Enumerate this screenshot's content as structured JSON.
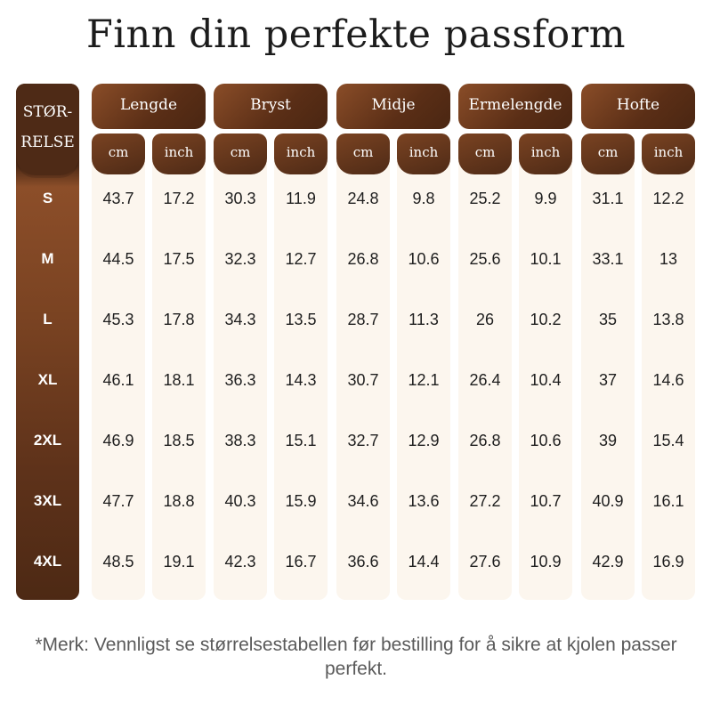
{
  "title": "Finn din perfekte passform",
  "size_header": [
    "STØR-",
    "RELSE"
  ],
  "sizes": [
    "S",
    "M",
    "L",
    "XL",
    "2XL",
    "3XL",
    "4XL"
  ],
  "groups": [
    {
      "name": "Lengde",
      "cm": [
        43.7,
        44.5,
        45.3,
        46.1,
        46.9,
        47.7,
        48.5
      ],
      "inch": [
        17.2,
        17.5,
        17.8,
        18.1,
        18.5,
        18.8,
        19.1
      ]
    },
    {
      "name": "Bryst",
      "cm": [
        30.3,
        32.3,
        34.3,
        36.3,
        38.3,
        40.3,
        42.3
      ],
      "inch": [
        11.9,
        12.7,
        13.5,
        14.3,
        15.1,
        15.9,
        16.7
      ]
    },
    {
      "name": "Midje",
      "cm": [
        24.8,
        26.8,
        28.7,
        30.7,
        32.7,
        34.6,
        36.6
      ],
      "inch": [
        9.8,
        10.6,
        11.3,
        12.1,
        12.9,
        13.6,
        14.4
      ]
    },
    {
      "name": "Ermelengde",
      "cm": [
        25.2,
        25.6,
        26,
        26.4,
        26.8,
        27.2,
        27.6
      ],
      "inch": [
        9.9,
        10.1,
        10.2,
        10.4,
        10.6,
        10.7,
        10.9
      ]
    },
    {
      "name": "Hofte",
      "cm": [
        31.1,
        33.1,
        35,
        37,
        39,
        40.9,
        42.9
      ],
      "inch": [
        12.2,
        13,
        13.8,
        14.6,
        15.4,
        16.1,
        16.9
      ]
    }
  ],
  "units": {
    "cm": "cm",
    "inch": "inch"
  },
  "note": "*Merk: Vennligst se størrelsestabellen før bestilling for å sikre at kjolen passer perfekt.",
  "colors": {
    "brown_dark": "#4e2a16",
    "brown_light": "#8a4d28",
    "cell_bg": "#fcf6ee"
  }
}
